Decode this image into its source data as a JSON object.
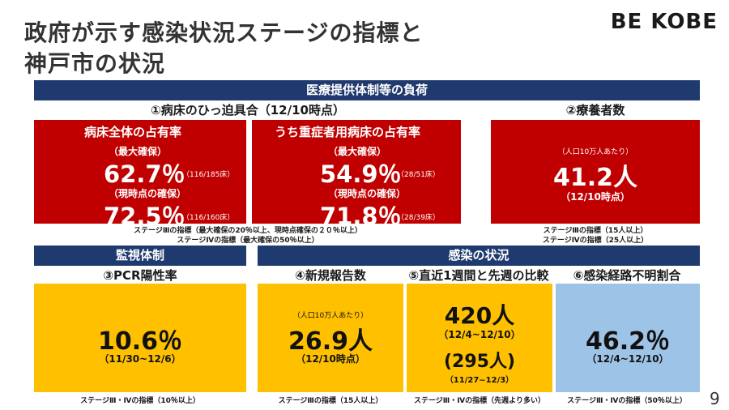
{
  "title_line1": "政府が示す感染状況ステージの指標と",
  "title_line2": "神戸市の状況",
  "logo": "BE KOBE",
  "page_number": "9",
  "medical": {
    "band": "医療提供体制等の負荷",
    "bed_header": "①病床のひっ迫具合（12/10時点）",
    "recovery_header": "②療養者数",
    "total_beds": {
      "title": "病床全体の占有率",
      "max_label": "（最大確保）",
      "max_value": "62.7％",
      "max_detail": "（116/185床）",
      "current_label": "（現時点の確保）",
      "current_value": "72.5％",
      "current_detail": "（116/160床）"
    },
    "severe_beds": {
      "title": "うち重症者用病床の占有率",
      "max_label": "（最大確保）",
      "max_value": "54.9％",
      "max_detail": "（28/51床）",
      "current_label": "（現時点の確保）",
      "current_value": "71.8％",
      "current_detail": "（28/39床）"
    },
    "recovery": {
      "per_pop": "（人口10万人あたり）",
      "value": "41.2人",
      "date": "（12/10時点）"
    },
    "bed_note1": "ステージⅢの指標（最大確保の20％以上、現時点確保の２０％以上）",
    "bed_note2": "ステージⅣの指標（最大確保の50％以上）",
    "recovery_note1": "ステージⅢの指標（15人以上）",
    "recovery_note2": "ステージⅣの指標（25人以上）"
  },
  "monitoring": {
    "band": "監視体制",
    "pcr_header": "③PCR陽性率",
    "pcr_value": "10.6％",
    "pcr_period": "（11/30~12/6）",
    "pcr_note": "ステージⅢ・Ⅳの指標（10％以上）"
  },
  "infection": {
    "band": "感染の状況",
    "new_header": "④新規報告数",
    "week_header": "⑤直近1週間と先週の比較",
    "unknown_header": "⑥感染経路不明割合",
    "new_per_pop": "（人口10万人あたり）",
    "new_value": "26.9人",
    "new_date": "（12/10時点）",
    "week_value": "420人",
    "week_period": "（12/4~12/10）",
    "prev_value": "(295人)",
    "prev_period": "（11/27~12/3）",
    "unknown_value": "46.2％",
    "unknown_period": "（12/4~12/10）",
    "new_note": "ステージⅢの指標（15人以上）",
    "week_note": "ステージⅢ・Ⅳの指標（先週より多い）",
    "unknown_note": "ステージⅢ・Ⅳの指標（50％以上）"
  },
  "colors": {
    "navy": "#1f3a6e",
    "red": "#c00000",
    "yellow": "#ffc000",
    "blue": "#9dc3e6"
  }
}
